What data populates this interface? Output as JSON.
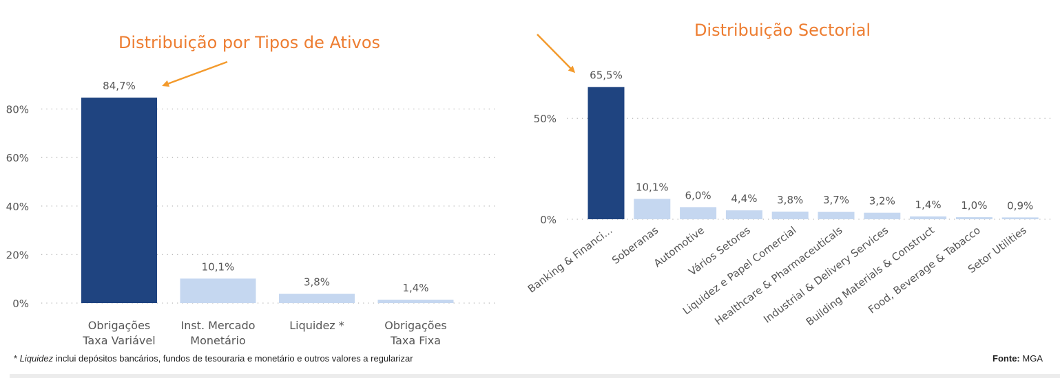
{
  "colors": {
    "highlight_bar": "#1f4480",
    "light_bar": "#c5d7f0",
    "title": "#ed7d31",
    "arrow": "#f39a2c",
    "text": "#555555",
    "grid": "#b8b8b8"
  },
  "chart_data": [
    {
      "type": "bar",
      "title": "Distribuição por Tipos de Ativos",
      "categories": [
        [
          "Obrigações",
          "Taxa Variável"
        ],
        [
          "Inst. Mercado",
          "Monetário"
        ],
        [
          "Liquidez *"
        ],
        [
          "Obrigações",
          "Taxa Fixa"
        ]
      ],
      "values": [
        84.7,
        10.1,
        3.8,
        1.4
      ],
      "data_labels": [
        "84,7%",
        "10,1%",
        "3,8%",
        "1,4%"
      ],
      "highlight_index": 0,
      "yticks": [
        0,
        20,
        40,
        60,
        80
      ],
      "ytick_labels": [
        "0%",
        "20%",
        "40%",
        "60%",
        "80%"
      ],
      "ylim": [
        0,
        100
      ],
      "grid": "dotted-horizontal"
    },
    {
      "type": "bar",
      "title": "Distribuição Sectorial",
      "categories": [
        "Banking & Financi...",
        "Soberanas",
        "Automotive",
        "Vários Setores",
        "Liquidez e Papel Comercial",
        "Healthcare & Pharmaceuticals",
        "Industrial & Delivery Services",
        "Building Materials & Construct",
        "Food, Beverage & Tabacco",
        "Setor Utilities"
      ],
      "values": [
        65.5,
        10.1,
        6.0,
        4.4,
        3.8,
        3.7,
        3.2,
        1.4,
        1.0,
        0.9
      ],
      "data_labels": [
        "65,5%",
        "10,1%",
        "6,0%",
        "4,4%",
        "3,8%",
        "3,7%",
        "3,2%",
        "1,4%",
        "1,0%",
        "0,9%"
      ],
      "highlight_index": 0,
      "yticks": [
        0,
        50
      ],
      "ytick_labels": [
        "0%",
        "50%"
      ],
      "ylim": [
        0,
        70
      ],
      "grid": "dotted-horizontal"
    }
  ],
  "footnote": {
    "prefix": "* ",
    "term": "Liquidez",
    "text": " inclui depósitos bancários, fundos de tesouraria e monetário e outros valores a regularizar"
  },
  "source": {
    "label": "Fonte:",
    "value": " MGA"
  }
}
